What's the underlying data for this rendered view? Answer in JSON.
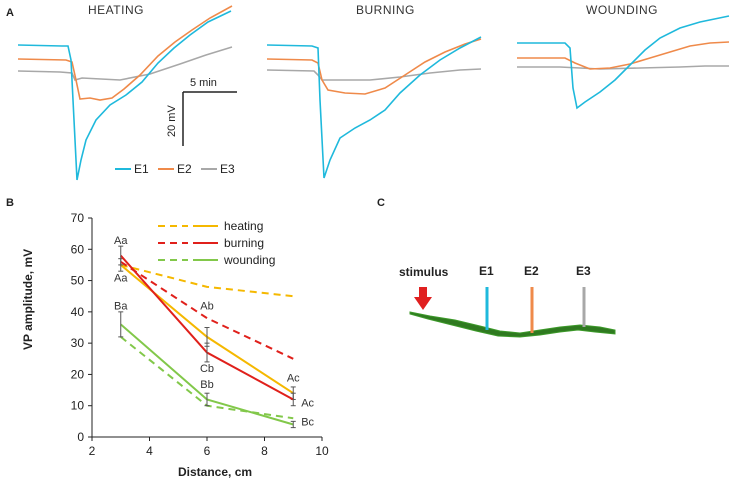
{
  "panels": {
    "a": "A",
    "b": "B",
    "c": "C"
  },
  "colors": {
    "E1": "#1fb9dc",
    "E2": "#ef8a4a",
    "E3": "#a8a8a8",
    "heating": "#f5b800",
    "burning": "#e0201b",
    "wounding": "#82c84a",
    "stem": "#2f7a20",
    "arrow": "#e02020"
  },
  "traces": {
    "titles": [
      "HEATING",
      "BURNING",
      "WOUNDING"
    ],
    "scale_time": "5 min",
    "scale_voltage": "20 mV",
    "legend": [
      "E1",
      "E2",
      "E3"
    ]
  },
  "chart_data": {
    "type": "line",
    "xlabel": "Distance, cm",
    "ylabel": "VP amplitude, mV",
    "xlim": [
      2,
      10
    ],
    "ylim": [
      0,
      70
    ],
    "xticks": [
      "2",
      "4",
      "6",
      "8",
      "10"
    ],
    "yticks": [
      "0",
      "10",
      "20",
      "30",
      "40",
      "50",
      "60",
      "70"
    ],
    "x": [
      3,
      6,
      9
    ],
    "legend_position": "top-right",
    "series": [
      {
        "name": "heating",
        "style": "dashed",
        "color": "#f5b800",
        "values": [
          55,
          48,
          45
        ]
      },
      {
        "name": "heating",
        "style": "solid",
        "color": "#f5b800",
        "values": [
          55,
          32,
          14
        ],
        "errors": [
          2,
          3,
          2
        ]
      },
      {
        "name": "burning",
        "style": "dashed",
        "color": "#e0201b",
        "values": [
          56,
          38,
          25
        ]
      },
      {
        "name": "burning",
        "style": "solid",
        "color": "#e0201b",
        "values": [
          58,
          27,
          12
        ],
        "errors": [
          3,
          3,
          2
        ]
      },
      {
        "name": "wounding",
        "style": "dashed",
        "color": "#82c84a",
        "values": [
          32,
          10,
          6
        ]
      },
      {
        "name": "wounding",
        "style": "solid",
        "color": "#82c84a",
        "values": [
          36,
          12,
          4
        ],
        "errors": [
          4,
          2,
          1
        ]
      }
    ],
    "annotations": [
      {
        "text": "Aa",
        "x": 3,
        "y": 63
      },
      {
        "text": "Aa",
        "x": 3,
        "y": 51
      },
      {
        "text": "Ba",
        "x": 3,
        "y": 42
      },
      {
        "text": "Ab",
        "x": 6,
        "y": 42
      },
      {
        "text": "Cb",
        "x": 6,
        "y": 22
      },
      {
        "text": "Bb",
        "x": 6,
        "y": 17
      },
      {
        "text": "Ac",
        "x": 9,
        "y": 19
      },
      {
        "text": "Ac",
        "x": 9.5,
        "y": 11
      },
      {
        "text": "Bc",
        "x": 9.5,
        "y": 5
      }
    ]
  },
  "diagram": {
    "stimulus": "stimulus",
    "electrodes": [
      "E1",
      "E2",
      "E3"
    ]
  }
}
